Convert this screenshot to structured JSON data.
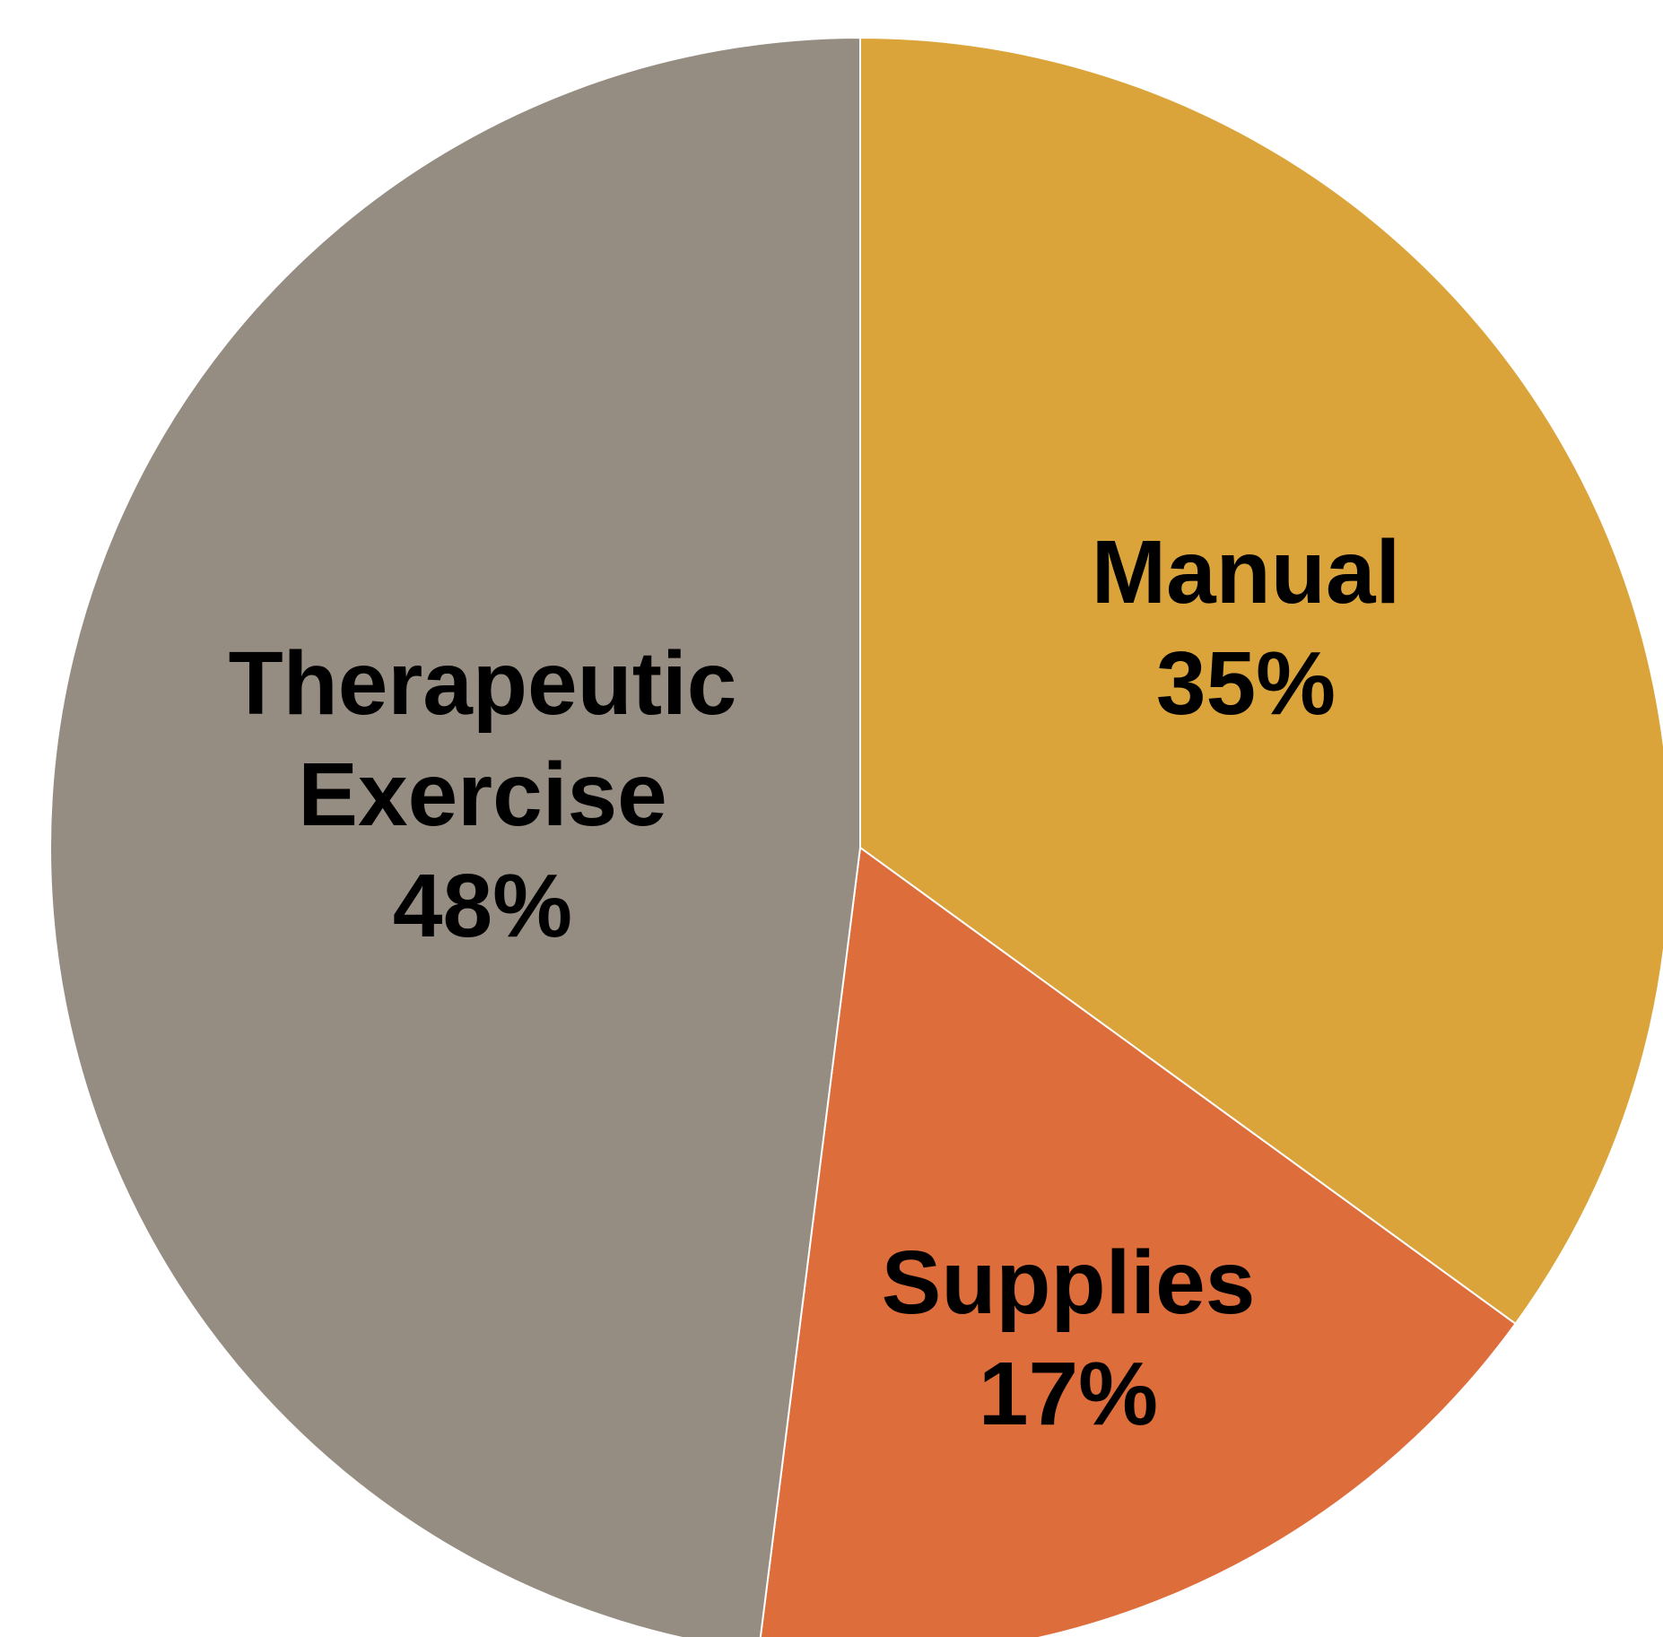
{
  "chart_data": {
    "type": "pie",
    "categories": [
      "Manual",
      "Supplies",
      "Therapeutic Exercise"
    ],
    "values": [
      35,
      17,
      48
    ],
    "value_labels": [
      "35%",
      "17%",
      "48%"
    ],
    "colors": [
      "#dba43a",
      "#dd6d3a",
      "#968d82"
    ]
  }
}
